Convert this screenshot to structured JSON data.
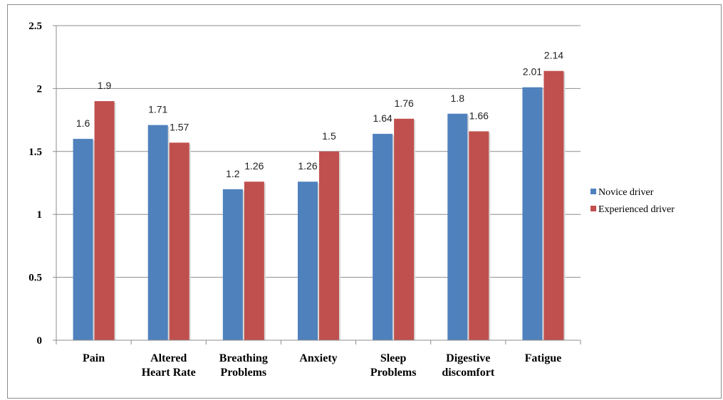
{
  "chart_data": {
    "type": "bar",
    "categories": [
      [
        "Pain"
      ],
      [
        "Altered",
        "Heart Rate"
      ],
      [
        "Breathing",
        "Problems"
      ],
      [
        "Anxiety"
      ],
      [
        "Sleep",
        "Problems"
      ],
      [
        "Digestive",
        "discomfort"
      ],
      [
        "Fatigue"
      ]
    ],
    "series": [
      {
        "name": "Novice driver",
        "color": "#4f81bd",
        "values": [
          1.6,
          1.71,
          1.2,
          1.26,
          1.64,
          1.8,
          2.01
        ]
      },
      {
        "name": "Experienced driver",
        "color": "#c0504d",
        "values": [
          1.9,
          1.57,
          1.26,
          1.5,
          1.76,
          1.66,
          2.14
        ]
      }
    ],
    "data_labels": [
      [
        "1.6",
        "1.71",
        "1.2",
        "1.26",
        "1.64",
        "1.8",
        "2.01"
      ],
      [
        "1.9",
        "1.57",
        "1.26",
        "1.5",
        "1.76",
        "1.66",
        "2.14"
      ]
    ],
    "yticks": [
      "0",
      "0.5",
      "1",
      "1.5",
      "2",
      "2.5"
    ],
    "ylim": [
      0,
      2.5
    ],
    "grid": true,
    "legend": "right"
  }
}
